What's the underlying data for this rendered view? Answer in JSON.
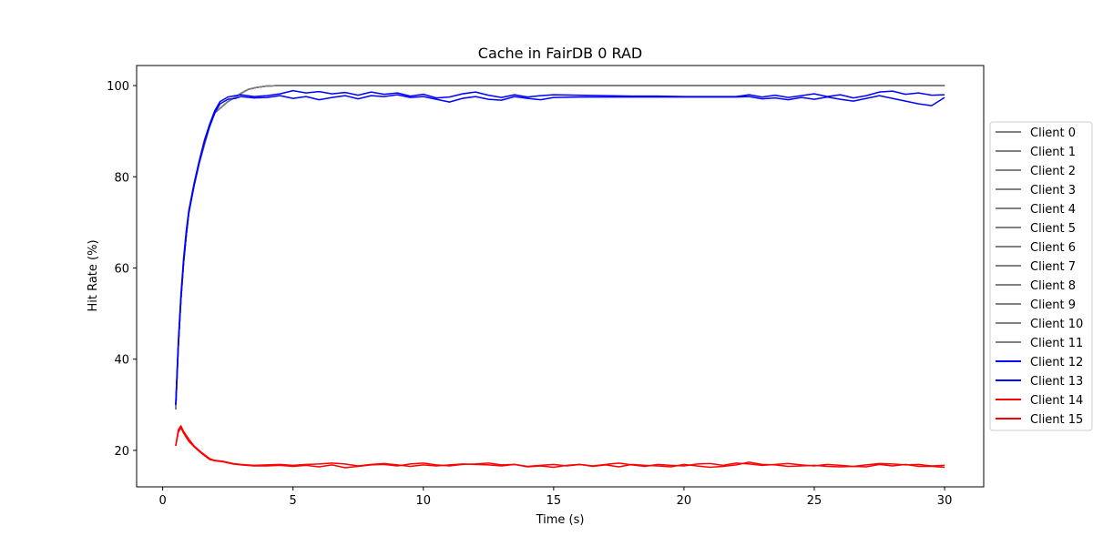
{
  "chart_data": {
    "type": "line",
    "title": "Cache in  FairDB 0 RAD",
    "xlabel": "Time (s)",
    "ylabel": "Hit Rate (%)",
    "xlim": [
      -1,
      31.5
    ],
    "ylim": [
      12,
      104.4
    ],
    "xticks": [
      0,
      5,
      10,
      15,
      20,
      25,
      30
    ],
    "yticks": [
      20,
      40,
      60,
      80,
      100
    ],
    "grid": false,
    "legend_position": "right",
    "colors": {
      "gray": "#808080",
      "blue": "#0000ff",
      "red": "#ff0000"
    },
    "groups": {
      "high": {
        "x": [
          0.5,
          0.6,
          0.7,
          0.8,
          0.9,
          1.0,
          1.2,
          1.4,
          1.6,
          1.8,
          2.0,
          2.2,
          2.5,
          2.8,
          3.0,
          3.3,
          3.6,
          4.0,
          4.5,
          5,
          6,
          8,
          10,
          12,
          14,
          16,
          18,
          20,
          22,
          24,
          26,
          28,
          30
        ],
        "y": [
          29,
          43,
          53,
          61,
          67,
          72,
          78,
          83,
          87,
          91,
          94,
          95,
          96.5,
          97.5,
          98.3,
          99.2,
          99.6,
          99.9,
          100,
          100,
          100,
          100,
          100,
          100,
          100,
          100,
          100,
          100,
          100,
          100,
          100,
          100,
          100
        ]
      },
      "mid_x": [
        0.5,
        0.6,
        0.7,
        0.8,
        0.9,
        1.0,
        1.2,
        1.4,
        1.6,
        1.8,
        2.0,
        2.2,
        2.5,
        2.8,
        3.0,
        3.5,
        4.0,
        4.5,
        5.0,
        5.5,
        6.0,
        6.5,
        7.0,
        7.5,
        8.0,
        8.5,
        9.0,
        9.5,
        10.0,
        10.5,
        11.0,
        11.5,
        12.0,
        12.5,
        13.0,
        13.5,
        14.0,
        14.5,
        15.0,
        16.0,
        17.0,
        18.0,
        19.0,
        20.0,
        21.0,
        22.0,
        22.5,
        23.0,
        23.5,
        24.0,
        24.5,
        25.0,
        25.5,
        26.0,
        26.5,
        27.0,
        27.5,
        28.0,
        28.5,
        29.0,
        29.5,
        30.0
      ],
      "low_x": [
        0.5,
        0.6,
        0.7,
        0.8,
        1.0,
        1.2,
        1.5,
        1.8,
        2.0,
        2.3,
        2.7,
        3.0,
        3.5,
        4.0,
        4.5,
        5.0,
        5.5,
        6.0,
        6.5,
        7.0,
        7.5,
        8.0,
        8.5,
        9.0,
        9.5,
        10.0,
        10.5,
        11.0,
        11.5,
        12.0,
        12.5,
        13.0,
        13.5,
        14.0,
        14.5,
        15.0,
        15.5,
        16.0,
        16.5,
        17.0,
        17.5,
        18.0,
        18.5,
        19.0,
        19.5,
        20.0,
        20.5,
        21.0,
        21.5,
        22.0,
        22.5,
        23.0,
        23.5,
        24.0,
        24.5,
        25.0,
        25.5,
        26.0,
        26.5,
        27.0,
        27.5,
        28.0,
        28.5,
        29.0,
        29.5,
        30.0
      ]
    },
    "series": [
      {
        "name": "Client 0",
        "color": "gray",
        "group": "high"
      },
      {
        "name": "Client 1",
        "color": "gray",
        "group": "high"
      },
      {
        "name": "Client 2",
        "color": "gray",
        "group": "high"
      },
      {
        "name": "Client 3",
        "color": "gray",
        "group": "high"
      },
      {
        "name": "Client 4",
        "color": "gray",
        "group": "high"
      },
      {
        "name": "Client 5",
        "color": "gray",
        "group": "high"
      },
      {
        "name": "Client 6",
        "color": "gray",
        "group": "high"
      },
      {
        "name": "Client 7",
        "color": "gray",
        "group": "high"
      },
      {
        "name": "Client 8",
        "color": "gray",
        "group": "high"
      },
      {
        "name": "Client 9",
        "color": "gray",
        "group": "high"
      },
      {
        "name": "Client 10",
        "color": "gray",
        "group": "high"
      },
      {
        "name": "Client 11",
        "color": "gray",
        "group": "high"
      },
      {
        "name": "Client 12",
        "color": "blue",
        "group": "mid_x",
        "y": [
          30,
          44,
          54,
          62,
          68,
          72.5,
          78.5,
          83.5,
          88,
          91.5,
          94.5,
          96.5,
          97.5,
          97.8,
          98,
          97.6,
          97.8,
          98.2,
          98.9,
          98.4,
          98.7,
          98.2,
          98.5,
          97.9,
          98.6,
          98.1,
          98.4,
          97.7,
          98.1,
          97.3,
          97.5,
          98.2,
          98.6,
          97.9,
          97.4,
          98.0,
          97.5,
          97.8,
          98.0,
          97.9,
          97.8,
          97.7,
          97.7,
          97.6,
          97.6,
          97.6,
          98.0,
          97.5,
          97.9,
          97.4,
          97.8,
          98.2,
          97.6,
          98.0,
          97.3,
          97.8,
          98.6,
          98.8,
          98.1,
          98.4,
          97.9,
          98.0
        ]
      },
      {
        "name": "Client 13",
        "color": "blue",
        "group": "mid_x",
        "y": [
          30,
          43,
          53,
          61,
          67,
          72,
          78,
          83,
          87.5,
          91,
          94,
          96,
          97,
          97.2,
          97.6,
          97.3,
          97.4,
          97.8,
          97.2,
          97.6,
          96.9,
          97.4,
          97.8,
          97.1,
          97.8,
          97.6,
          98.0,
          97.4,
          97.6,
          97.0,
          96.4,
          97.2,
          97.6,
          97.0,
          96.8,
          97.6,
          97.2,
          96.9,
          97.4,
          97.5,
          97.5,
          97.5,
          97.5,
          97.5,
          97.5,
          97.5,
          97.6,
          97.1,
          97.3,
          96.9,
          97.4,
          97.0,
          97.5,
          97.0,
          96.6,
          97.2,
          97.8,
          97.2,
          96.6,
          96.0,
          95.6,
          97.4
        ]
      },
      {
        "name": "Client 14",
        "color": "red",
        "group": "low_x",
        "y": [
          21,
          24.5,
          25.4,
          24.2,
          22.5,
          21.0,
          19.5,
          18.2,
          17.8,
          17.6,
          17.1,
          16.9,
          16.7,
          16.8,
          16.9,
          16.7,
          16.9,
          17.0,
          17.2,
          17.0,
          16.6,
          16.9,
          17.1,
          16.8,
          16.5,
          16.8,
          16.6,
          16.8,
          17.0,
          16.9,
          16.8,
          16.6,
          16.9,
          16.5,
          16.7,
          16.9,
          16.6,
          16.9,
          16.6,
          16.9,
          17.2,
          16.8,
          16.5,
          16.9,
          16.7,
          16.6,
          17.0,
          17.1,
          16.7,
          17.2,
          17.0,
          16.7,
          16.9,
          17.1,
          16.8,
          16.6,
          16.9,
          16.7,
          16.5,
          16.8,
          17.1,
          17.0,
          16.8,
          16.9,
          16.6,
          16.7
        ]
      },
      {
        "name": "Client 15",
        "color": "red",
        "group": "low_x",
        "y": [
          21,
          24.0,
          25.0,
          23.8,
          22.0,
          20.8,
          19.3,
          18.0,
          17.7,
          17.5,
          17.0,
          16.8,
          16.6,
          16.6,
          16.7,
          16.5,
          16.7,
          16.4,
          16.8,
          16.2,
          16.5,
          16.8,
          16.9,
          16.6,
          17.0,
          17.2,
          16.8,
          16.6,
          16.9,
          17.0,
          17.2,
          16.8,
          16.9,
          16.4,
          16.6,
          16.3,
          16.7,
          16.9,
          16.5,
          16.8,
          16.4,
          16.9,
          16.7,
          16.6,
          16.4,
          16.9,
          16.6,
          16.3,
          16.5,
          16.8,
          17.4,
          16.9,
          16.8,
          16.5,
          16.6,
          16.7,
          16.5,
          16.4,
          16.5,
          16.4,
          16.9,
          16.6,
          16.9,
          16.5,
          16.5,
          16.3
        ]
      }
    ]
  }
}
